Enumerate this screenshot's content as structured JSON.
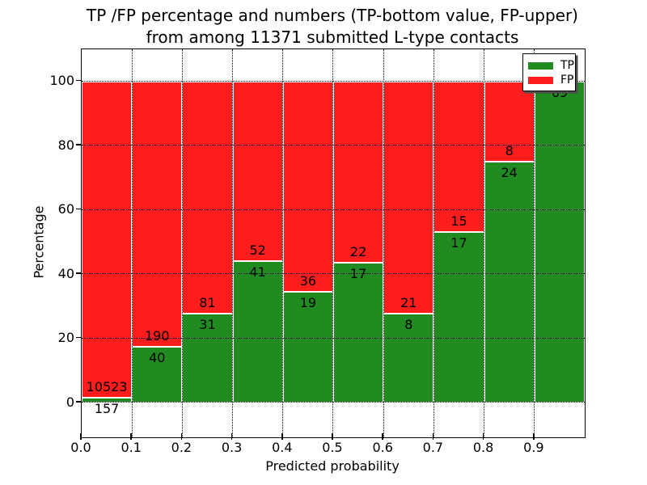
{
  "title": {
    "line1": "TP /FP percentage and numbers (TP-bottom value, FP-upper)",
    "line2": "from among 11371 submitted L-type contacts"
  },
  "chart_data": {
    "type": "bar",
    "subtype": "stacked-100-percent",
    "title": "TP /FP percentage and numbers (TP-bottom value, FP-upper) from among 11371 submitted L-type contacts",
    "xlabel": "Predicted probability",
    "ylabel": "Percentage",
    "total_submitted": 11371,
    "bin_width": 0.1,
    "categories": [
      "0.0-0.1",
      "0.1-0.2",
      "0.2-0.3",
      "0.3-0.4",
      "0.4-0.5",
      "0.5-0.6",
      "0.6-0.7",
      "0.7-0.8",
      "0.8-0.9",
      "0.9-1.0"
    ],
    "series": [
      {
        "name": "TP",
        "color": "#218a21",
        "values": [
          157,
          40,
          31,
          41,
          19,
          17,
          8,
          17,
          24,
          69
        ]
      },
      {
        "name": "FP",
        "color": "#fd1d1d",
        "values": [
          10523,
          190,
          81,
          52,
          36,
          22,
          21,
          15,
          8,
          0
        ]
      }
    ],
    "x_tick_labels": [
      "0.0",
      "0.1",
      "0.2",
      "0.3",
      "0.4",
      "0.5",
      "0.6",
      "0.7",
      "0.8",
      "0.9"
    ],
    "y_tick_values": [
      0,
      20,
      40,
      60,
      80,
      100
    ],
    "y_tick_labels": [
      "0",
      "20",
      "40",
      "60",
      "80",
      "100"
    ],
    "xlim": [
      0.0,
      1.0
    ],
    "ylim": [
      -11,
      110
    ],
    "grid": true,
    "legend_position": "upper right"
  }
}
